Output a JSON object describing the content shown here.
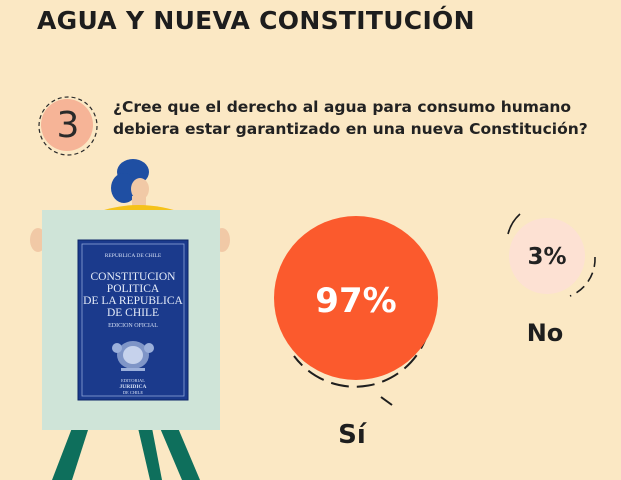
{
  "header": {
    "title": "AGUA Y NUEVA CONSTITUCIÓN"
  },
  "question": {
    "number": "3",
    "line1": "¿Cree que el derecho al agua para consumo humano",
    "line2": "debiera estar garantizado en una nueva Constitución?"
  },
  "book": {
    "top": "REPUBLICA DE CHILE",
    "t1": "CONSTITUCION",
    "t2": "POLITICA",
    "t3": "DE LA REPUBLICA",
    "t4": "DE CHILE",
    "edition": "EDICION OFICIAL",
    "pub1": "EDITORIAL",
    "pub2": "JURIDICA",
    "pub3": "DE CHILE"
  },
  "colors": {
    "background": "#fbe8c4",
    "yes": "#fb5a2d",
    "no": "#fde1d3",
    "accent": "#f6b497"
  },
  "chart_data": {
    "type": "bubble",
    "title": "",
    "series": [
      {
        "category": "Sí",
        "value": 97,
        "label": "97%",
        "color": "#fb5a2d"
      },
      {
        "category": "No",
        "value": 3,
        "label": "3%",
        "color": "#fde1d3"
      }
    ],
    "unit": "%"
  }
}
